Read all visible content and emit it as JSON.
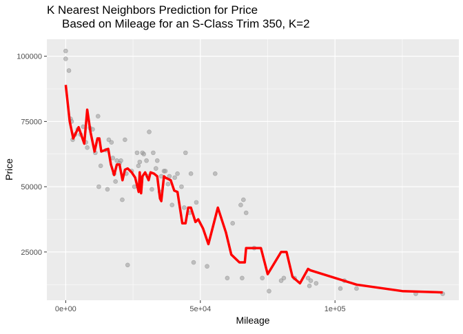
{
  "chart_data": {
    "type": "scatter",
    "title": "K Nearest Neighbors Prediction for Price",
    "subtitle": "Based on Mileage for an S-Class Trim 350, K=2",
    "xlabel": "Mileage",
    "ylabel": "Price",
    "xlim": [
      -7000,
      146000
    ],
    "ylim": [
      6500,
      106500
    ],
    "x_ticks": [
      {
        "value": 0,
        "label": "0e+00"
      },
      {
        "value": 50000,
        "label": "5e+04"
      },
      {
        "value": 100000,
        "label": "1e+05"
      }
    ],
    "y_ticks": [
      {
        "value": 25000,
        "label": "25000"
      },
      {
        "value": 50000,
        "label": "50000"
      },
      {
        "value": 75000,
        "label": "75000"
      },
      {
        "value": 100000,
        "label": "100000"
      }
    ],
    "grid": true,
    "legend": "none",
    "colors": {
      "panel": "#ebebeb",
      "grid": "#ffffff",
      "points": "#999999",
      "prediction": "#ff0000"
    },
    "series": [
      {
        "type": "scatter",
        "points": [
          [
            0,
            102000
          ],
          [
            0,
            99000
          ],
          [
            1200,
            94500
          ],
          [
            1800,
            76000
          ],
          [
            2200,
            75000
          ],
          [
            2600,
            68000
          ],
          [
            3500,
            70000
          ],
          [
            4500,
            72000
          ],
          [
            5500,
            70000
          ],
          [
            6500,
            73000
          ],
          [
            7500,
            67000
          ],
          [
            8000,
            65000
          ],
          [
            9000,
            72500
          ],
          [
            10000,
            72000
          ],
          [
            11000,
            63000
          ],
          [
            12000,
            77000
          ],
          [
            12300,
            50000
          ],
          [
            13000,
            58000
          ],
          [
            15000,
            64000
          ],
          [
            15500,
            49000
          ],
          [
            16000,
            68000
          ],
          [
            17000,
            67000
          ],
          [
            17500,
            61000
          ],
          [
            18000,
            55000
          ],
          [
            18500,
            52000
          ],
          [
            19000,
            60000
          ],
          [
            20000,
            59000
          ],
          [
            20500,
            60000
          ],
          [
            21000,
            45000
          ],
          [
            22000,
            68000
          ],
          [
            22500,
            55000
          ],
          [
            23000,
            20000
          ],
          [
            24500,
            56000
          ],
          [
            25500,
            50000
          ],
          [
            26500,
            63000
          ],
          [
            27000,
            58000
          ],
          [
            27500,
            59500
          ],
          [
            28000,
            52000
          ],
          [
            28500,
            63000
          ],
          [
            29000,
            62500
          ],
          [
            30000,
            60000
          ],
          [
            30500,
            54000
          ],
          [
            31000,
            71000
          ],
          [
            32000,
            49000
          ],
          [
            32500,
            63000
          ],
          [
            33500,
            57000
          ],
          [
            34000,
            60000
          ],
          [
            35000,
            48000
          ],
          [
            35500,
            54000
          ],
          [
            36500,
            56000
          ],
          [
            37000,
            56000
          ],
          [
            38000,
            51000
          ],
          [
            38500,
            54000
          ],
          [
            39500,
            43000
          ],
          [
            40500,
            53500
          ],
          [
            41500,
            55000
          ],
          [
            43000,
            50000
          ],
          [
            44000,
            42000
          ],
          [
            44500,
            63000
          ],
          [
            46000,
            40000
          ],
          [
            46500,
            55000
          ],
          [
            47500,
            21000
          ],
          [
            48500,
            44000
          ],
          [
            52500,
            19500
          ],
          [
            55500,
            55000
          ],
          [
            60000,
            15000
          ],
          [
            62000,
            36000
          ],
          [
            65000,
            43000
          ],
          [
            65500,
            15000
          ],
          [
            66000,
            45000
          ],
          [
            67000,
            40000
          ],
          [
            70000,
            26500
          ],
          [
            73000,
            15000
          ],
          [
            75500,
            10000
          ],
          [
            80000,
            14000
          ],
          [
            81000,
            15000
          ],
          [
            85000,
            15000
          ],
          [
            90000,
            15000
          ],
          [
            90500,
            12000
          ],
          [
            91000,
            14000
          ],
          [
            93000,
            13000
          ],
          [
            102000,
            11000
          ],
          [
            103500,
            14000
          ],
          [
            108000,
            11000
          ],
          [
            130000,
            9000
          ],
          [
            140000,
            9000
          ]
        ]
      },
      {
        "type": "line",
        "points": [
          [
            0,
            89000
          ],
          [
            1500,
            75000
          ],
          [
            2800,
            68500
          ],
          [
            4800,
            72800
          ],
          [
            6900,
            66500
          ],
          [
            8000,
            79500
          ],
          [
            9200,
            71000
          ],
          [
            10700,
            63500
          ],
          [
            11800,
            68500
          ],
          [
            12500,
            68500
          ],
          [
            13200,
            63500
          ],
          [
            15800,
            64500
          ],
          [
            16800,
            58500
          ],
          [
            18000,
            54500
          ],
          [
            19000,
            58500
          ],
          [
            20000,
            58500
          ],
          [
            21100,
            52500
          ],
          [
            22000,
            56500
          ],
          [
            23000,
            57000
          ],
          [
            24500,
            55500
          ],
          [
            25800,
            53500
          ],
          [
            27100,
            48000
          ],
          [
            27500,
            55500
          ],
          [
            28000,
            47500
          ],
          [
            28500,
            54000
          ],
          [
            29500,
            55500
          ],
          [
            30800,
            52500
          ],
          [
            31500,
            55500
          ],
          [
            32800,
            55000
          ],
          [
            34000,
            54000
          ],
          [
            35000,
            45500
          ],
          [
            35500,
            44500
          ],
          [
            36500,
            54000
          ],
          [
            37000,
            53500
          ],
          [
            39000,
            52500
          ],
          [
            40300,
            48500
          ],
          [
            41500,
            48000
          ],
          [
            43300,
            36000
          ],
          [
            44500,
            36000
          ],
          [
            45500,
            42000
          ],
          [
            46500,
            42000
          ],
          [
            48200,
            36500
          ],
          [
            49200,
            37500
          ],
          [
            51000,
            34000
          ],
          [
            53000,
            28000
          ],
          [
            56500,
            42000
          ],
          [
            59500,
            32500
          ],
          [
            61500,
            24000
          ],
          [
            64500,
            21000
          ],
          [
            66500,
            21000
          ],
          [
            67000,
            26500
          ],
          [
            72500,
            26500
          ],
          [
            75000,
            16500
          ],
          [
            80000,
            25000
          ],
          [
            82000,
            25000
          ],
          [
            84200,
            15500
          ],
          [
            87000,
            13000
          ],
          [
            90000,
            18500
          ],
          [
            90800,
            18000
          ],
          [
            108000,
            12500
          ],
          [
            125000,
            10000
          ],
          [
            140000,
            9500
          ]
        ]
      }
    ]
  }
}
